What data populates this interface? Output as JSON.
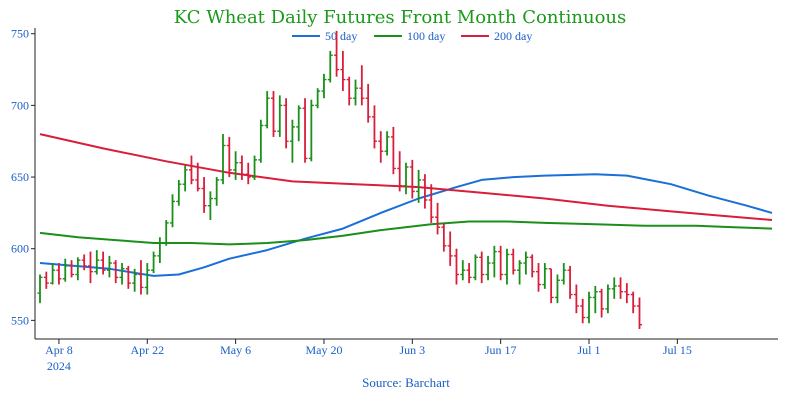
{
  "chart_data": {
    "type": "line",
    "title": "KC Wheat Daily Futures Front Month Continuous",
    "source": "Source: Barchart",
    "ylim": [
      537,
      754
    ],
    "y_ticks": [
      550,
      600,
      650,
      700,
      750
    ],
    "x_ticks": [
      {
        "day": 3,
        "label": "Apr 8",
        "sub": "2024"
      },
      {
        "day": 17,
        "label": "Apr 22",
        "sub": ""
      },
      {
        "day": 31,
        "label": "May 6",
        "sub": ""
      },
      {
        "day": 45,
        "label": "May 20",
        "sub": ""
      },
      {
        "day": 59,
        "label": "Jun 3",
        "sub": ""
      },
      {
        "day": 73,
        "label": "Jun 17",
        "sub": ""
      },
      {
        "day": 87,
        "label": "Jul 1",
        "sub": ""
      },
      {
        "day": 101,
        "label": "Jul 15",
        "sub": ""
      }
    ],
    "x_range": [
      0,
      116
    ],
    "legend": [
      {
        "name": "50 day",
        "color": "#1a6fd8"
      },
      {
        "name": "100 day",
        "color": "#1a8f1a"
      },
      {
        "name": "200 day",
        "color": "#d81e3a"
      }
    ],
    "up_color": "#1a8f1a",
    "down_color": "#d81e3a",
    "series": [
      {
        "name": "50 day",
        "color": "#1a6fd8",
        "points": [
          [
            0,
            590
          ],
          [
            11,
            586
          ],
          [
            18,
            581
          ],
          [
            22,
            582
          ],
          [
            26,
            587
          ],
          [
            30,
            593
          ],
          [
            36,
            599
          ],
          [
            42,
            607
          ],
          [
            48,
            614
          ],
          [
            54,
            625
          ],
          [
            60,
            635
          ],
          [
            66,
            643
          ],
          [
            70,
            648
          ],
          [
            75,
            650
          ],
          [
            80,
            651
          ],
          [
            88,
            652
          ],
          [
            93,
            651
          ],
          [
            100,
            645
          ],
          [
            106,
            637
          ],
          [
            112,
            630
          ],
          [
            116,
            625
          ]
        ]
      },
      {
        "name": "100 day",
        "color": "#1a8f1a",
        "points": [
          [
            0,
            611
          ],
          [
            6,
            608
          ],
          [
            12,
            606
          ],
          [
            18,
            604
          ],
          [
            24,
            604
          ],
          [
            30,
            603
          ],
          [
            36,
            604
          ],
          [
            42,
            606
          ],
          [
            48,
            609
          ],
          [
            54,
            613
          ],
          [
            62,
            617
          ],
          [
            68,
            619
          ],
          [
            74,
            619
          ],
          [
            80,
            618
          ],
          [
            88,
            617
          ],
          [
            96,
            616
          ],
          [
            104,
            616
          ],
          [
            110,
            615
          ],
          [
            116,
            614
          ]
        ]
      },
      {
        "name": "200 day",
        "color": "#d81e3a",
        "points": [
          [
            0,
            680
          ],
          [
            10,
            670
          ],
          [
            20,
            661
          ],
          [
            30,
            653
          ],
          [
            40,
            647
          ],
          [
            50,
            645
          ],
          [
            60,
            643
          ],
          [
            70,
            639
          ],
          [
            80,
            635
          ],
          [
            90,
            630
          ],
          [
            100,
            626
          ],
          [
            108,
            623
          ],
          [
            116,
            620
          ]
        ]
      }
    ],
    "ohlc": [
      [
        0,
        569,
        582,
        562,
        580
      ],
      [
        1,
        580,
        584,
        572,
        576
      ],
      [
        2,
        576,
        590,
        575,
        585
      ],
      [
        3,
        585,
        590,
        575,
        579
      ],
      [
        4,
        579,
        593,
        577,
        588
      ],
      [
        5,
        588,
        592,
        580,
        582
      ],
      [
        6,
        582,
        594,
        578,
        592
      ],
      [
        7,
        592,
        596,
        585,
        588
      ],
      [
        8,
        588,
        598,
        576,
        584
      ],
      [
        9,
        584,
        599,
        582,
        592
      ],
      [
        10,
        592,
        598,
        582,
        585
      ],
      [
        11,
        585,
        595,
        580,
        590
      ],
      [
        12,
        590,
        592,
        576,
        580
      ],
      [
        13,
        580,
        590,
        575,
        586
      ],
      [
        14,
        586,
        588,
        572,
        576
      ],
      [
        15,
        576,
        586,
        570,
        582
      ],
      [
        16,
        582,
        592,
        568,
        573
      ],
      [
        17,
        573,
        590,
        568,
        585
      ],
      [
        18,
        585,
        598,
        583,
        595
      ],
      [
        19,
        595,
        608,
        590,
        604
      ],
      [
        20,
        604,
        620,
        602,
        618
      ],
      [
        21,
        618,
        638,
        615,
        633
      ],
      [
        22,
        633,
        648,
        630,
        645
      ],
      [
        23,
        645,
        658,
        640,
        655
      ],
      [
        24,
        655,
        665,
        645,
        648
      ],
      [
        25,
        648,
        660,
        640,
        642
      ],
      [
        26,
        642,
        650,
        625,
        630
      ],
      [
        27,
        630,
        640,
        620,
        635
      ],
      [
        28,
        635,
        650,
        630,
        648
      ],
      [
        29,
        648,
        680,
        645,
        672
      ],
      [
        30,
        672,
        678,
        650,
        655
      ],
      [
        31,
        655,
        668,
        648,
        660
      ],
      [
        32,
        660,
        665,
        648,
        652
      ],
      [
        33,
        652,
        660,
        645,
        650
      ],
      [
        34,
        650,
        665,
        648,
        662
      ],
      [
        35,
        662,
        690,
        660,
        686
      ],
      [
        36,
        686,
        710,
        684,
        705
      ],
      [
        37,
        705,
        710,
        678,
        682
      ],
      [
        38,
        682,
        707,
        678,
        700
      ],
      [
        39,
        700,
        705,
        670,
        675
      ],
      [
        40,
        675,
        690,
        660,
        685
      ],
      [
        41,
        685,
        700,
        675,
        698
      ],
      [
        42,
        698,
        705,
        660,
        663
      ],
      [
        43,
        663,
        704,
        661,
        700
      ],
      [
        44,
        700,
        712,
        698,
        710
      ],
      [
        45,
        710,
        722,
        705,
        718
      ],
      [
        46,
        718,
        738,
        716,
        735
      ],
      [
        47,
        735,
        752,
        720,
        725
      ],
      [
        48,
        725,
        738,
        710,
        718
      ],
      [
        49,
        718,
        720,
        700,
        705
      ],
      [
        50,
        705,
        718,
        700,
        712
      ],
      [
        51,
        712,
        728,
        700,
        705
      ],
      [
        52,
        705,
        715,
        688,
        692
      ],
      [
        53,
        692,
        700,
        670,
        675
      ],
      [
        54,
        675,
        682,
        660,
        668
      ],
      [
        55,
        668,
        682,
        665,
        678
      ],
      [
        56,
        678,
        685,
        652,
        656
      ],
      [
        57,
        656,
        668,
        640,
        644
      ],
      [
        58,
        644,
        660,
        638,
        657
      ],
      [
        59,
        657,
        662,
        635,
        640
      ],
      [
        60,
        640,
        655,
        632,
        648
      ],
      [
        61,
        648,
        652,
        628,
        634
      ],
      [
        62,
        634,
        645,
        618,
        622
      ],
      [
        63,
        622,
        632,
        610,
        615
      ],
      [
        64,
        615,
        618,
        598,
        602
      ],
      [
        65,
        602,
        612,
        588,
        595
      ],
      [
        66,
        595,
        600,
        575,
        582
      ],
      [
        67,
        582,
        592,
        578,
        585
      ],
      [
        68,
        585,
        590,
        576,
        580
      ],
      [
        69,
        580,
        596,
        578,
        594
      ],
      [
        70,
        594,
        598,
        576,
        582
      ],
      [
        71,
        582,
        595,
        578,
        590
      ],
      [
        72,
        590,
        602,
        580,
        598
      ],
      [
        73,
        598,
        602,
        578,
        582
      ],
      [
        74,
        582,
        600,
        575,
        596
      ],
      [
        75,
        596,
        600,
        582,
        585
      ],
      [
        76,
        585,
        592,
        575,
        590
      ],
      [
        77,
        590,
        598,
        582,
        594
      ],
      [
        78,
        594,
        596,
        580,
        584
      ],
      [
        79,
        584,
        590,
        570,
        575
      ],
      [
        80,
        575,
        590,
        572,
        586
      ],
      [
        81,
        586,
        586,
        562,
        566
      ],
      [
        82,
        566,
        582,
        562,
        578
      ],
      [
        83,
        578,
        590,
        575,
        585
      ],
      [
        84,
        585,
        588,
        565,
        568
      ],
      [
        85,
        568,
        575,
        555,
        560
      ],
      [
        86,
        560,
        565,
        548,
        552
      ],
      [
        87,
        552,
        570,
        548,
        566
      ],
      [
        88,
        566,
        574,
        555,
        570
      ],
      [
        89,
        570,
        572,
        552,
        558
      ],
      [
        90,
        558,
        575,
        555,
        572
      ],
      [
        91,
        572,
        580,
        565,
        574
      ],
      [
        92,
        574,
        580,
        565,
        570
      ],
      [
        93,
        570,
        576,
        562,
        568
      ],
      [
        94,
        568,
        570,
        555,
        560
      ],
      [
        95,
        560,
        566,
        544,
        547
      ]
    ]
  }
}
